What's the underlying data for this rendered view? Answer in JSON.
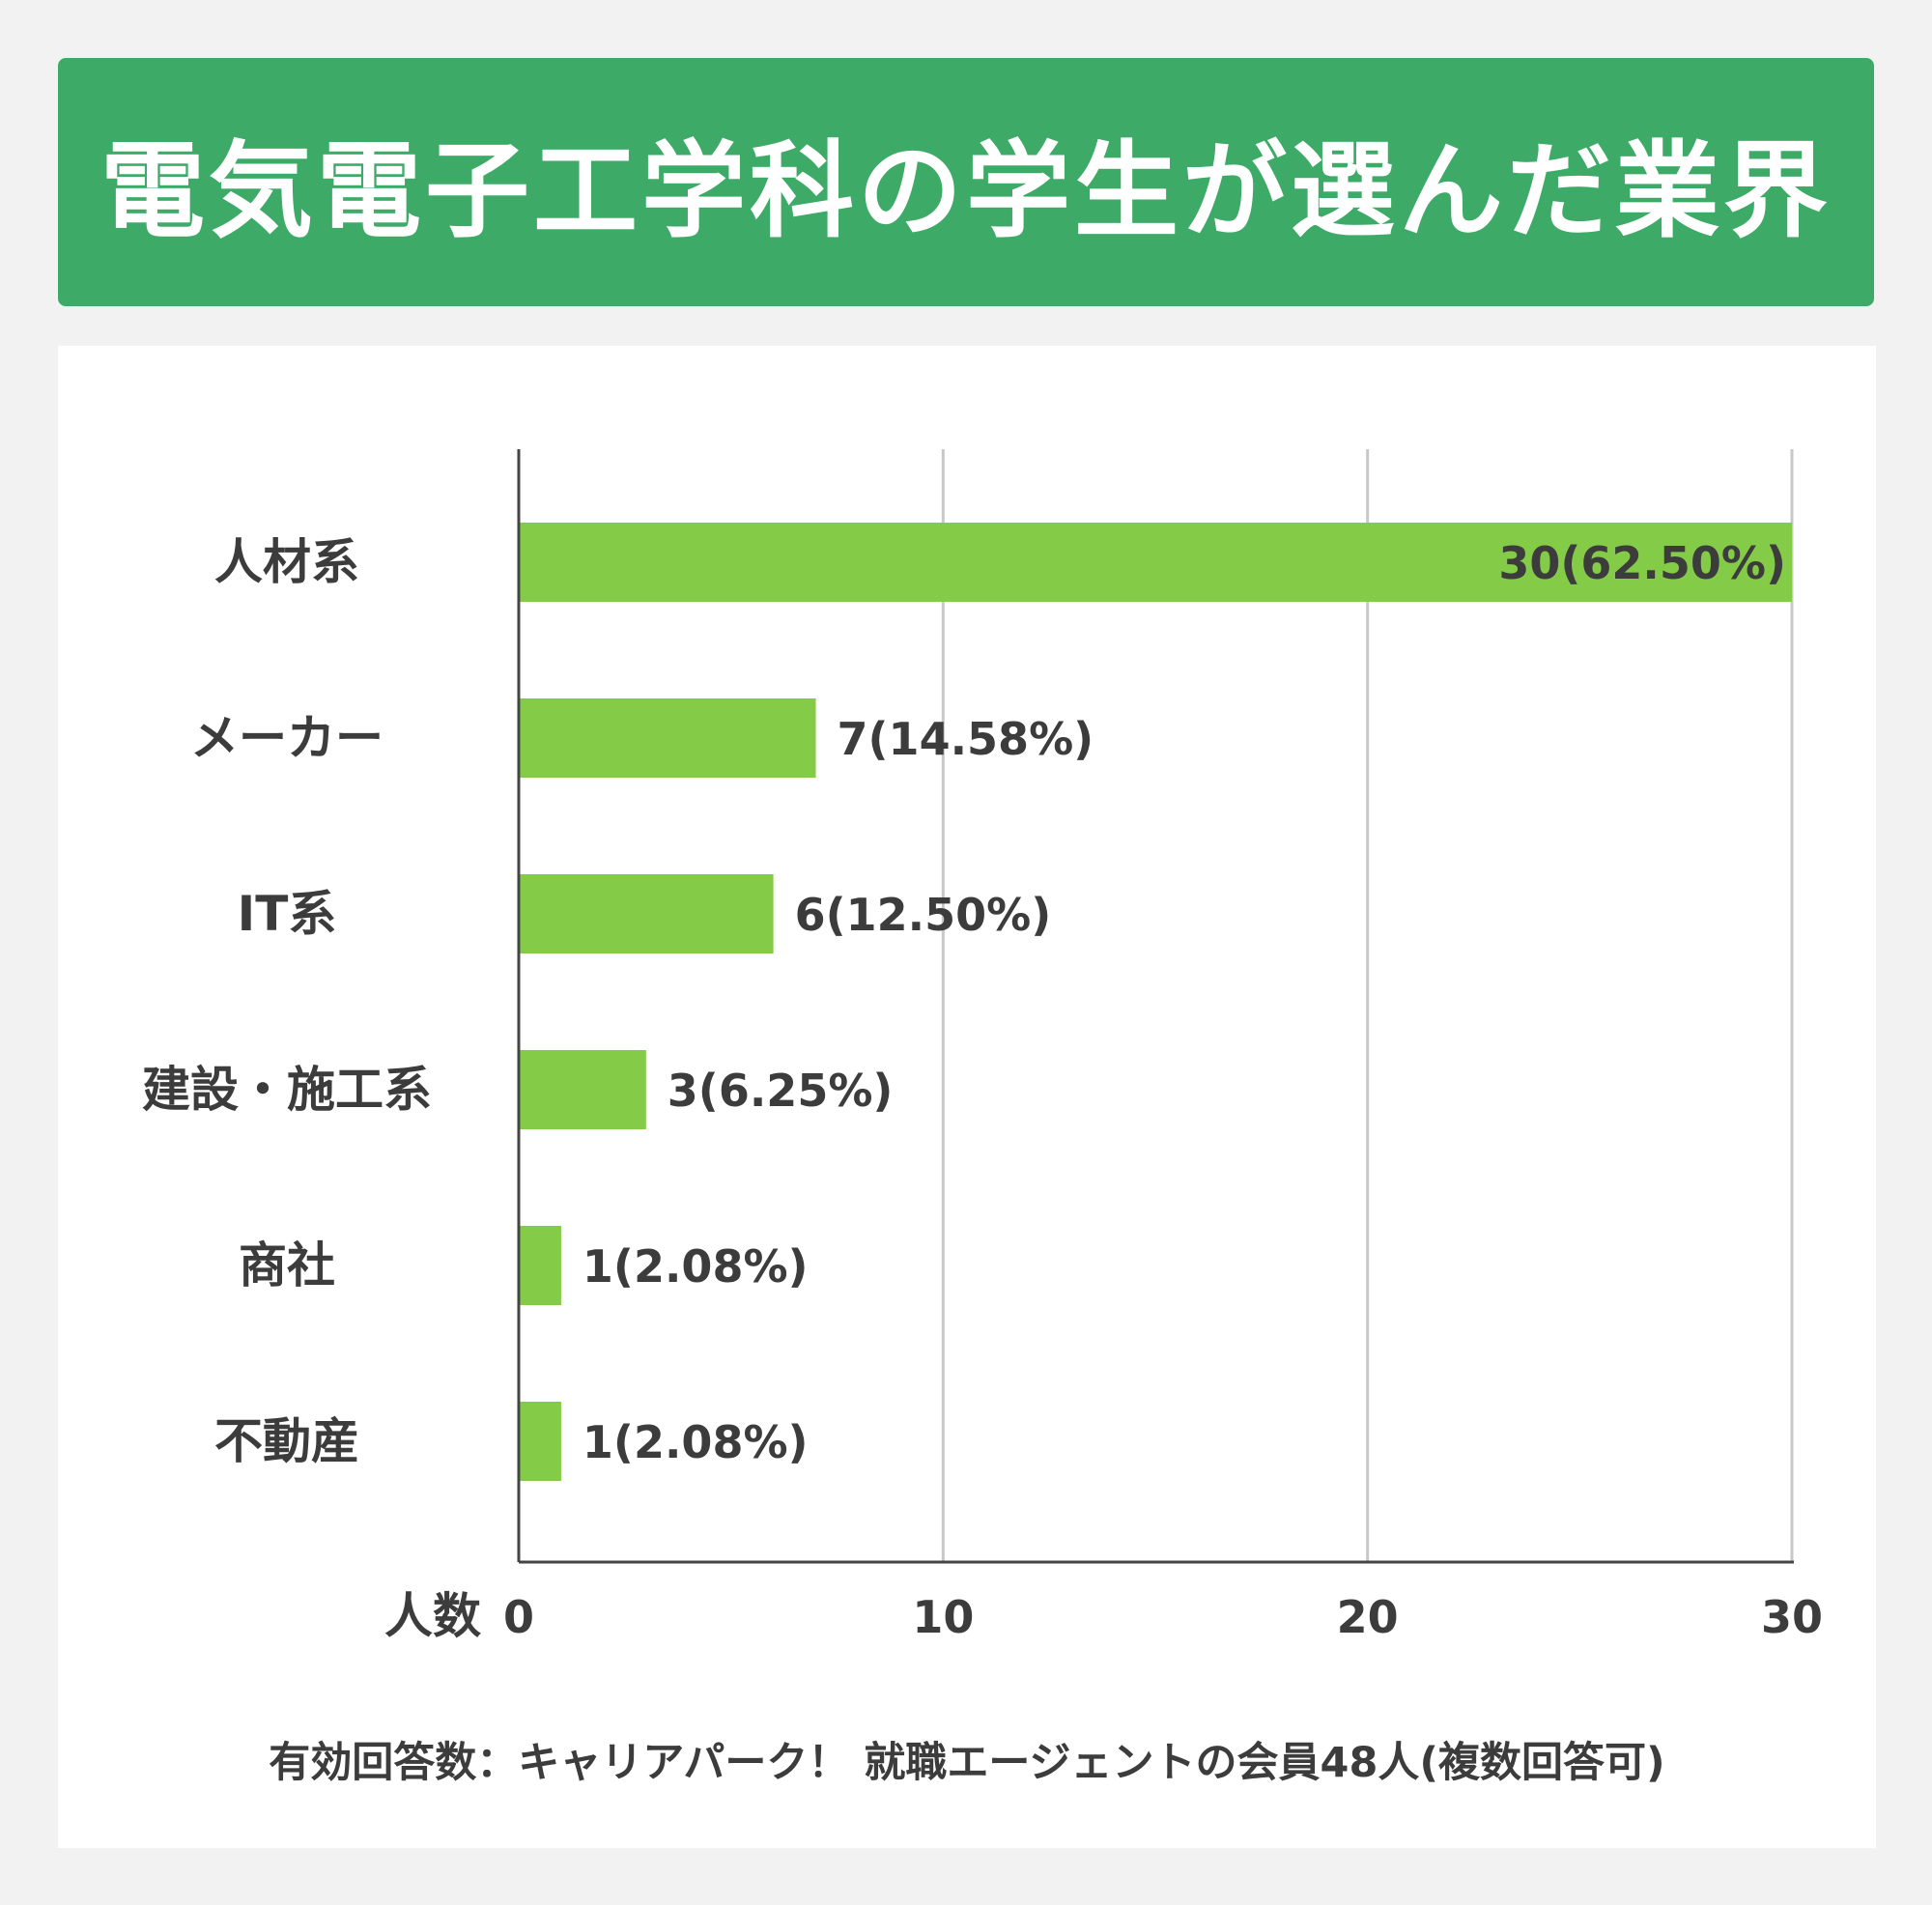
{
  "title": "電気電子工学科の学生が選んだ業界",
  "chart_data": {
    "type": "bar",
    "orientation": "horizontal",
    "categories": [
      "人材系",
      "メーカー",
      "IT系",
      "建設・施工系",
      "商社",
      "不動産"
    ],
    "values": [
      30,
      7,
      6,
      3,
      1,
      1
    ],
    "value_labels": [
      "30(62.50%)",
      "7(14.58%)",
      "6(12.50%)",
      "3(6.25%)",
      "1(2.08%)",
      "1(2.08%)"
    ],
    "xlabel": "人数",
    "xlim": [
      0,
      30
    ],
    "xticks": [
      0,
      10,
      20,
      30
    ],
    "grid": true,
    "bar_color": "#84cc47"
  },
  "footnote": "有効回答数：キャリアパーク！ 就職エージェントの会員48人(複数回答可)"
}
